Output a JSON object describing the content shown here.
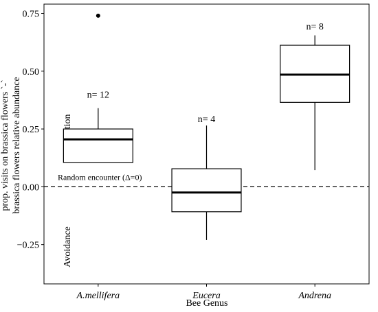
{
  "chart_data": {
    "type": "boxplot",
    "xlabel": "Bee Genus",
    "ylabel_line1": "prop. visits on brassica flowers `-`",
    "ylabel_line2": "brassica flowers relative abundance",
    "ylim": [
      -0.42,
      0.79
    ],
    "yticks": [
      {
        "value": 0.75,
        "label": "0.75"
      },
      {
        "value": 0.5,
        "label": "0.50"
      },
      {
        "value": 0.25,
        "label": "0.25"
      },
      {
        "value": 0.0,
        "label": "0.00"
      },
      {
        "value": -0.25,
        "label": "−0.25"
      }
    ],
    "reference_line": {
      "value": 0,
      "style": "dashed",
      "label": "Random encounter (Δ=0)"
    },
    "region_labels": [
      {
        "text": "Attraction",
        "value": 0.23
      },
      {
        "text": "Avoidance",
        "value": -0.26
      }
    ],
    "categories": [
      "A.mellifera",
      "Eucera",
      "Andrena"
    ],
    "boxes": [
      {
        "category": "A.mellifera",
        "whisker_low": 0.105,
        "q1": 0.105,
        "median": 0.205,
        "q3": 0.25,
        "whisker_high": 0.34,
        "outliers": [
          0.74
        ],
        "n_label": "n= 12",
        "n_value": 0.4
      },
      {
        "category": "Eucera",
        "whisker_low": -0.23,
        "q1": -0.108,
        "median": -0.025,
        "q3": 0.078,
        "whisker_high": 0.265,
        "outliers": [],
        "n_label": "n= 4",
        "n_value": 0.295
      },
      {
        "category": "Andrena",
        "whisker_low": 0.072,
        "q1": 0.365,
        "median": 0.485,
        "q3": 0.612,
        "whisker_high": 0.655,
        "outliers": [],
        "n_label": "n= 8",
        "n_value": 0.695
      }
    ]
  }
}
